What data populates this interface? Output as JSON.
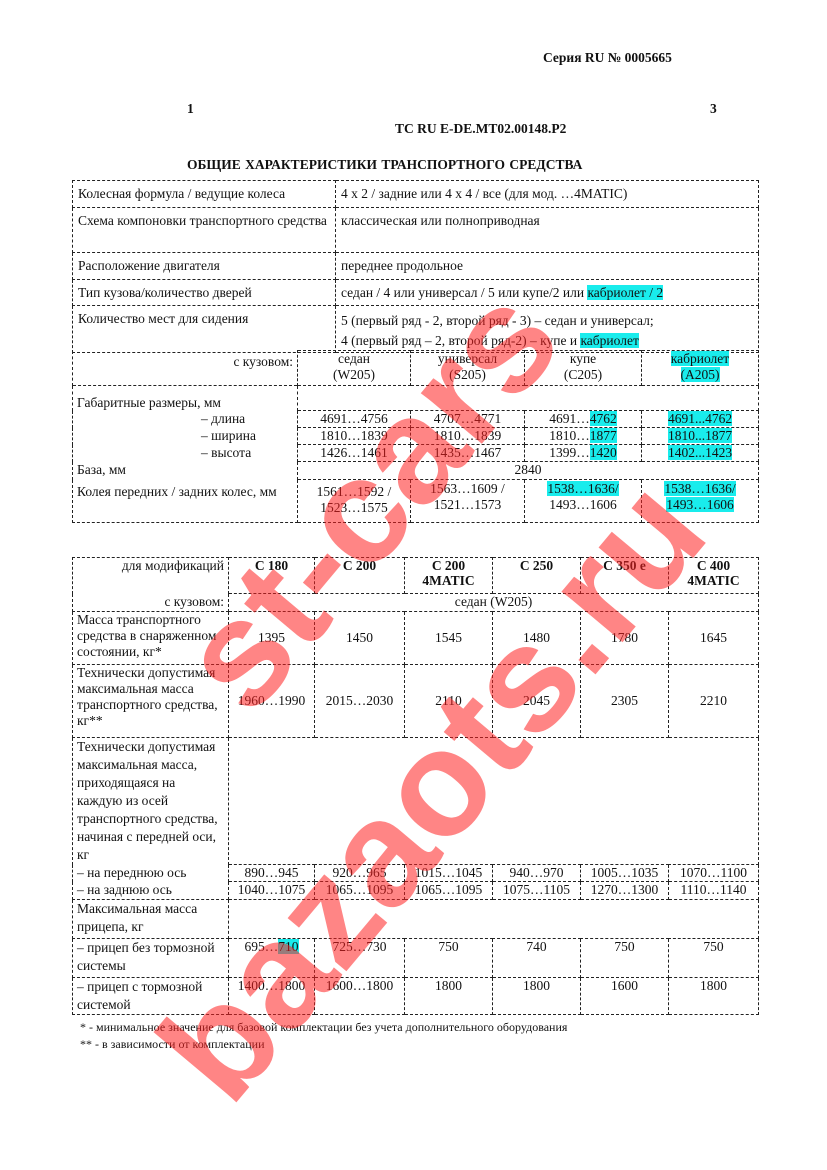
{
  "header": {
    "series": "Серия RU № 0005665",
    "page_left": "1",
    "page_right": "3",
    "doc_number": "ТС RU E-DE.MT02.00148.P2",
    "title": "ОБЩИЕ  ХАРАКТЕРИСТИКИ  ТРАНСПОРТНОГО  СРЕДСТВА"
  },
  "table1": {
    "rows": [
      {
        "label": "Колесная формула / ведущие колеса",
        "value": "4 х 2 / задние или 4 х 4 / все (для мод. …4MATIC)"
      },
      {
        "label": "Схема компоновки транспортного средства",
        "value": "классическая или полноприводная"
      },
      {
        "label": "Расположение двигателя",
        "value": "переднее продольное"
      },
      {
        "label": "Тип кузова/количество дверей",
        "value": "седан / 4 или универсал / 5 или купе/2 или ",
        "value_hl": "кабриолет / 2"
      },
      {
        "label": "Количество мест для сидения",
        "value": "5 (первый ряд - 2, второй ряд - 3) – седан и универсал;",
        "value2": "4 (первый ряд – 2, второй ряд-2) – купе и ",
        "value2_hl": "кабриолет"
      }
    ],
    "body_label": "с кузовом:",
    "bodies": [
      {
        "name": "седан",
        "code": "(W205)"
      },
      {
        "name": "универсал",
        "code": "(S205)"
      },
      {
        "name": "купе",
        "code": "(C205)"
      },
      {
        "name": "кабриолет",
        "code": "(A205)"
      }
    ],
    "dims_label": "Габаритные размеры, мм",
    "dims": [
      {
        "label": "–   длина",
        "values": [
          "4691…4756",
          "4707…4771",
          "4691…",
          "4691...4762"
        ],
        "c205_hl": "4762"
      },
      {
        "label": "–   ширина",
        "values": [
          "1810…1839",
          "1810…1839",
          "1810…",
          "1810...1877"
        ],
        "c205_hl": "1877"
      },
      {
        "label": "–   высота",
        "values": [
          "1426…1461",
          "1435…1467",
          "1399…",
          "1402...1423"
        ],
        "c205_hl": "1420"
      }
    ],
    "base_label": "База, мм",
    "base_value": "2840",
    "track_label": "Колея  передних / задних колес, мм",
    "track": [
      [
        "1561…1592 /",
        "1523…1575"
      ],
      [
        "1563…1609 /",
        "1521…1573"
      ],
      [
        "1538…1636/",
        "1493…1606"
      ],
      [
        "1538…1636/",
        "1493…1606"
      ]
    ]
  },
  "table2": {
    "mod_label": "для модификаций",
    "mods": [
      "С 180",
      "С 200",
      "С 200 4MATIC",
      "С 250",
      "С 350 е",
      "С 400 4MATIC"
    ],
    "body_label": "с кузовом:",
    "body_value": "седан (W205)",
    "curb_label": "Масса транспортного средства в снаряженном состоянии, кг*",
    "curb": [
      "1395",
      "1450",
      "1545",
      "1480",
      "1780",
      "1645"
    ],
    "gross_label": "Технически допустимая максимальная масса транспортного средства, кг**",
    "gross": [
      "1960…1990",
      "2015…2030",
      "2110",
      "2045",
      "2305",
      "2210"
    ],
    "axle_label": "Технически допустимая максимальная масса, приходящаяся на каждую из осей транспортного средства, начиная с передней оси, кг",
    "front_label": "–   на переднюю ось",
    "front": [
      "890…945",
      "920…965",
      "1015…1045",
      "940…970",
      "1005…1035",
      "1070…1100"
    ],
    "rear_label": "–   на заднюю ось",
    "rear": [
      "1040…1075",
      "1065…1095",
      "1065…1095",
      "1075…1105",
      "1270…1300",
      "1110…1140"
    ],
    "trailer_label": "Максимальная масса прицепа, кг",
    "unbraked_label": "–  прицеп без тормозной системы",
    "unbraked": [
      "695…",
      "725…730",
      "750",
      "740",
      "750",
      "750"
    ],
    "unbraked_c180_hl": "710",
    "braked_label": "–  прицеп с тормозной системой",
    "braked": [
      "1400…1800",
      "1600…1800",
      "1800",
      "1800",
      "1600",
      "1800"
    ]
  },
  "footnotes": [
    "* - минимальное значение для базовой комплектации без учета дополнительного оборудования",
    "** - в зависимости от комплектации"
  ],
  "watermark": {
    "line1": "st-cars",
    "line2": "bazaots.ru",
    "color": "#ff2020"
  },
  "highlight_color": "#19ecec"
}
